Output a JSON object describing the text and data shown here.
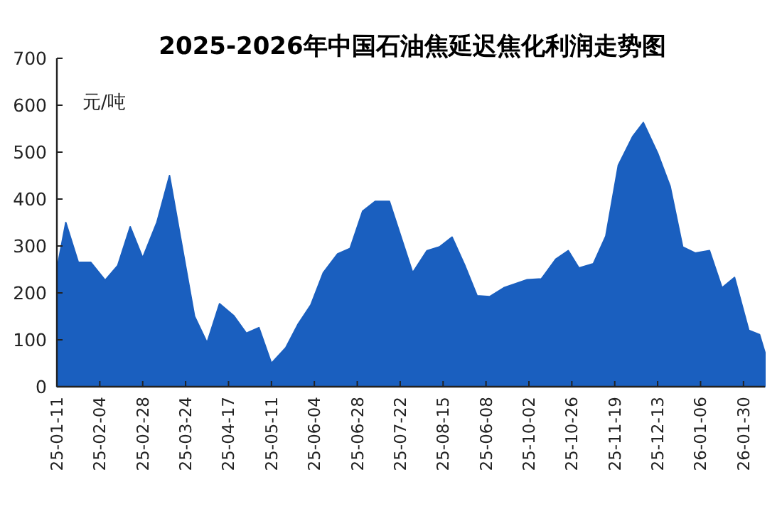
{
  "chart_data": {
    "type": "area",
    "title": "2025-2026年中国石油焦延迟焦化利润走势图",
    "annotations": [
      "元/吨"
    ],
    "x": [
      "2025-01-11",
      "2025-01-16",
      "2025-01-23",
      "2025-01-30",
      "2025-02-07",
      "2025-02-14",
      "2025-02-21",
      "2025-02-28",
      "2025-03-08",
      "2025-03-15",
      "2025-03-29",
      "2025-04-05",
      "2025-04-12",
      "2025-04-20",
      "2025-04-27",
      "2025-05-04",
      "2025-05-11",
      "2025-05-19",
      "2025-05-26",
      "2025-06-02",
      "2025-06-09",
      "2025-06-17",
      "2025-06-24",
      "2025-07-01",
      "2025-07-08",
      "2025-07-16",
      "2025-07-29",
      "2025-08-06",
      "2025-08-13",
      "2025-08-20",
      "2025-08-27",
      "2025-09-03",
      "2025-09-10",
      "2025-09-18",
      "2025-10-01",
      "2025-10-09",
      "2025-10-17",
      "2025-10-24",
      "2025-10-30",
      "2025-11-07",
      "2025-11-14",
      "2025-11-21",
      "2025-11-29",
      "2025-12-05",
      "2025-12-13",
      "2025-12-20",
      "2025-12-27",
      "2026-01-03",
      "2026-01-11",
      "2026-01-18",
      "2026-01-25",
      "2026-02-02",
      "2026-02-08",
      "2026-02-11"
    ],
    "series": [
      {
        "color": "#1a5fbf",
        "values": [
          250,
          350,
          265,
          265,
          227,
          258,
          341,
          275,
          351,
          450,
          150,
          94,
          177,
          151,
          114,
          126,
          50,
          83,
          134,
          174,
          243,
          283,
          295,
          374,
          395,
          395,
          243,
          290,
          298,
          319,
          260,
          194,
          192,
          211,
          228,
          230,
          272,
          290,
          253,
          262,
          321,
          472,
          533,
          563,
          498,
          427,
          298,
          285,
          290,
          211,
          233,
          120,
          111,
          73
        ]
      }
    ],
    "xlim": [
      "2025-01-11",
      "2026-02-11"
    ],
    "xticks": [
      {
        "value": "2025-01-11",
        "label": "25-01-11"
      },
      {
        "value": "2025-02-04",
        "label": "25-02-04"
      },
      {
        "value": "2025-02-28",
        "label": "25-02-28"
      },
      {
        "value": "2025-03-24",
        "label": "25-03-24"
      },
      {
        "value": "2025-04-17",
        "label": "25-04-17"
      },
      {
        "value": "2025-05-11",
        "label": "25-05-11"
      },
      {
        "value": "2025-06-04",
        "label": "25-06-04"
      },
      {
        "value": "2025-06-28",
        "label": "25-06-28"
      },
      {
        "value": "2025-07-22",
        "label": "25-07-22"
      },
      {
        "value": "2025-08-15",
        "label": "25-08-15"
      },
      {
        "value": "2025-09-08",
        "label": "25-06-08"
      },
      {
        "value": "2025-10-02",
        "label": "25-10-02"
      },
      {
        "value": "2025-10-26",
        "label": "25-10-26"
      },
      {
        "value": "2025-11-19",
        "label": "25-11-19"
      },
      {
        "value": "2025-12-13",
        "label": "25-12-13"
      },
      {
        "value": "2026-01-06",
        "label": "26-01-06"
      },
      {
        "value": "2026-01-30",
        "label": "26-01-30"
      }
    ],
    "ylim": [
      0,
      700
    ],
    "yticks": [
      0,
      100,
      200,
      300,
      400,
      500,
      600,
      700
    ],
    "grid": false
  }
}
